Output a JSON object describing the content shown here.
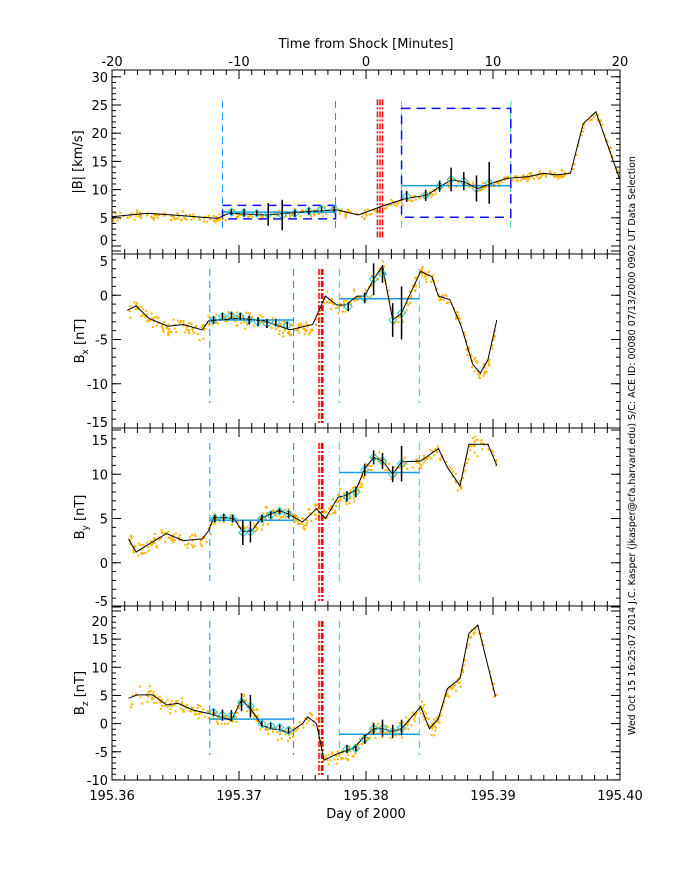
{
  "side_text": "Wed Oct 15 16:25:07 2014   J.C. Kasper (jkasper@cfa.harvard.edu)   S/C: ACE ID: 00080 07/13/2000   0902 UT Data Selection",
  "colors": {
    "data": "#ffb300",
    "fit": "#000000",
    "window1": "#1e90ff",
    "window2": "#20e0b0",
    "box": "#1010ff",
    "shock": "#ff0000",
    "mean": "#1e9be0"
  },
  "chart_data": [
    {
      "type": "line",
      "title": "",
      "xlabel": "Time from Shock [Minutes]",
      "ylabel": "|B| [km/s]",
      "xlim": [
        -20,
        20
      ],
      "ylim": [
        0,
        30
      ],
      "xticks": [
        "-20",
        "-10",
        "0",
        "10",
        "20"
      ],
      "yticks": [
        "0",
        "5",
        "10",
        "15",
        "20",
        "25",
        "30"
      ],
      "fit": [
        [
          -20,
          5.2
        ],
        [
          -17.2,
          5.8
        ],
        [
          -15.2,
          5.5
        ],
        [
          -11.7,
          4.9
        ],
        [
          -10.8,
          5.8
        ],
        [
          -7.9,
          5.5
        ],
        [
          -4.7,
          6.1
        ],
        [
          -2.3,
          6.4
        ],
        [
          -0.6,
          5.5
        ],
        [
          1.2,
          7.0
        ],
        [
          3.1,
          8.4
        ],
        [
          4.8,
          9.0
        ],
        [
          5.8,
          10.5
        ],
        [
          6.7,
          11.7
        ],
        [
          7.7,
          11.4
        ],
        [
          8.8,
          10.2
        ],
        [
          9.9,
          11.1
        ],
        [
          11.1,
          12.0
        ],
        [
          12.8,
          12.3
        ],
        [
          14.0,
          12.9
        ],
        [
          15.0,
          12.6
        ],
        [
          16.1,
          12.9
        ],
        [
          17.1,
          21.7
        ],
        [
          18.1,
          23.8
        ],
        [
          20,
          11.7
        ]
      ],
      "markers": [
        [
          -10.6,
          6.0,
          0.5
        ],
        [
          -9.6,
          5.9,
          0.7
        ],
        [
          -8.6,
          5.8,
          0.5
        ],
        [
          -7.7,
          5.6,
          2.0
        ],
        [
          -6.6,
          5.5,
          2.7
        ],
        [
          -5.6,
          5.8,
          0.6
        ],
        [
          -4.5,
          6.2,
          0.6
        ],
        [
          -3.5,
          6.5,
          0.5
        ],
        [
          -2.5,
          6.5,
          0.5
        ],
        [
          3.2,
          8.8,
          1.0
        ],
        [
          4.7,
          9.0,
          1.0
        ],
        [
          5.8,
          10.6,
          1.0
        ],
        [
          6.7,
          11.8,
          2.1
        ],
        [
          7.7,
          11.5,
          1.6
        ],
        [
          8.7,
          10.2,
          2.3
        ],
        [
          9.7,
          11.2,
          3.7
        ]
      ],
      "windows": [
        [
          -11.3,
          -2.4
        ],
        [
          2.8,
          11.4
        ]
      ],
      "means": [
        6.0,
        10.7
      ],
      "boxes": [
        [
          -11.3,
          -2.4,
          4.8,
          7.2
        ],
        [
          2.8,
          11.4,
          5.1,
          24.4
        ]
      ],
      "shock": [
        0.9,
        1.1,
        1.3
      ]
    },
    {
      "type": "line",
      "ylabel": "B",
      "ysub": "x",
      "yunit": " [nT]",
      "xlim": [
        195.36,
        195.4
      ],
      "ylim": [
        -15,
        5
      ],
      "yticks": [
        "-15",
        "-10",
        "-5",
        "0",
        "5"
      ],
      "fit": [
        [
          195.3612,
          -1.7
        ],
        [
          195.3619,
          -1.2
        ],
        [
          195.3629,
          -2.6
        ],
        [
          195.3644,
          -3.5
        ],
        [
          195.3656,
          -3.3
        ],
        [
          195.3671,
          -3.9
        ],
        [
          195.3676,
          -2.9
        ],
        [
          195.37,
          -2.6
        ],
        [
          195.372,
          -2.9
        ],
        [
          195.374,
          -3.9
        ],
        [
          195.3758,
          -3.3
        ],
        [
          195.3764,
          -1.4
        ],
        [
          195.3768,
          -0.1
        ],
        [
          195.3777,
          -1.1
        ],
        [
          195.3784,
          -1.1
        ],
        [
          195.3793,
          -0.1
        ],
        [
          195.3799,
          -0.1
        ],
        [
          195.3806,
          1.8
        ],
        [
          195.3813,
          3.3
        ],
        [
          195.3821,
          -2.8
        ],
        [
          195.3828,
          -2.0
        ],
        [
          195.3834,
          -0.1
        ],
        [
          195.3843,
          2.7
        ],
        [
          195.3852,
          2.1
        ],
        [
          195.3857,
          -0.1
        ],
        [
          195.3866,
          -0.5
        ],
        [
          195.3875,
          -3.5
        ],
        [
          195.3884,
          -7.8
        ],
        [
          195.389,
          -8.8
        ],
        [
          195.3896,
          -7.3
        ],
        [
          195.3903,
          -2.8
        ]
      ],
      "markers": [
        [
          195.368,
          -2.8,
          0.4
        ],
        [
          195.3687,
          -2.4,
          0.4
        ],
        [
          195.3694,
          -2.3,
          0.4
        ],
        [
          195.3701,
          -2.4,
          0.4
        ],
        [
          195.3708,
          -2.8,
          0.5
        ],
        [
          195.3715,
          -3.0,
          0.5
        ],
        [
          195.3722,
          -3.2,
          0.5
        ],
        [
          195.3729,
          -3.1,
          0.4
        ],
        [
          195.3738,
          -3.4,
          0.4
        ],
        [
          195.3786,
          -1.3,
          0.5
        ],
        [
          195.3799,
          -0.3,
          0.6
        ],
        [
          195.3806,
          1.8,
          1.8
        ],
        [
          195.3813,
          2.4,
          1.0
        ],
        [
          195.3821,
          -2.8,
          1.9
        ],
        [
          195.3828,
          -2.0,
          3.0
        ]
      ],
      "windows": [
        [
          195.3677,
          195.3743
        ],
        [
          195.3779,
          195.3842
        ]
      ],
      "means": [
        -2.8,
        -0.4
      ],
      "shock": [
        195.3763,
        195.3765,
        195.3766
      ]
    },
    {
      "type": "line",
      "ylabel": "B",
      "ysub": "y",
      "yunit": " [nT]",
      "xlim": [
        195.36,
        195.4
      ],
      "ylim": [
        -5,
        15
      ],
      "yticks": [
        "-5",
        "0",
        "5",
        "10",
        "15"
      ],
      "fit": [
        [
          195.3613,
          2.7
        ],
        [
          195.3619,
          1.2
        ],
        [
          195.3629,
          2.1
        ],
        [
          195.3643,
          3.3
        ],
        [
          195.3656,
          2.5
        ],
        [
          195.3671,
          2.7
        ],
        [
          195.3676,
          3.6
        ],
        [
          195.368,
          5.1
        ],
        [
          195.3689,
          5.1
        ],
        [
          195.3696,
          5.0
        ],
        [
          195.3703,
          3.5
        ],
        [
          195.371,
          3.6
        ],
        [
          195.3718,
          5.1
        ],
        [
          195.3725,
          5.5
        ],
        [
          195.3732,
          5.9
        ],
        [
          195.3739,
          5.5
        ],
        [
          195.375,
          4.6
        ],
        [
          195.3761,
          6.1
        ],
        [
          195.3768,
          5.0
        ],
        [
          195.3778,
          7.4
        ],
        [
          195.3784,
          7.6
        ],
        [
          195.3792,
          8.2
        ],
        [
          195.3799,
          10.6
        ],
        [
          195.3806,
          11.9
        ],
        [
          195.3813,
          11.5
        ],
        [
          195.3821,
          10.0
        ],
        [
          195.3828,
          11.4
        ],
        [
          195.3843,
          11.5
        ],
        [
          195.3857,
          12.9
        ],
        [
          195.3864,
          10.8
        ],
        [
          195.3874,
          8.7
        ],
        [
          195.3881,
          13.4
        ],
        [
          195.3896,
          13.4
        ],
        [
          195.3903,
          11.0
        ]
      ],
      "markers": [
        [
          195.3681,
          5.0,
          0.4
        ],
        [
          195.3688,
          5.1,
          0.4
        ],
        [
          195.3695,
          5.0,
          0.4
        ],
        [
          195.3703,
          3.4,
          1.4
        ],
        [
          195.3709,
          3.5,
          1.2
        ],
        [
          195.3718,
          5.0,
          0.4
        ],
        [
          195.3725,
          5.4,
          0.4
        ],
        [
          195.3732,
          5.8,
          0.3
        ],
        [
          195.3739,
          5.5,
          0.4
        ],
        [
          195.3785,
          7.5,
          0.6
        ],
        [
          195.3792,
          8.0,
          0.6
        ],
        [
          195.3799,
          10.5,
          0.7
        ],
        [
          195.3806,
          11.9,
          0.8
        ],
        [
          195.3813,
          11.5,
          0.9
        ],
        [
          195.3821,
          10.0,
          0.9
        ],
        [
          195.3828,
          11.2,
          2.0
        ]
      ],
      "windows": [
        [
          195.3677,
          195.3743
        ],
        [
          195.3779,
          195.3842
        ]
      ],
      "means": [
        4.8,
        10.2
      ],
      "shock": [
        195.3763,
        195.3765,
        195.3766
      ]
    },
    {
      "type": "line",
      "ylabel": "B",
      "ysub": "z",
      "yunit": " [nT]",
      "xlabel": "Day of 2000",
      "xlim": [
        195.36,
        195.4
      ],
      "ylim": [
        -10,
        20
      ],
      "xticks": [
        "195.36",
        "195.37",
        "195.38",
        "195.39",
        "195.40"
      ],
      "yticks": [
        "-10",
        "-5",
        "0",
        "5",
        "10",
        "15",
        "20"
      ],
      "fit": [
        [
          195.3613,
          4.5
        ],
        [
          195.362,
          5.1
        ],
        [
          195.3632,
          5.1
        ],
        [
          195.3643,
          3.3
        ],
        [
          195.3652,
          3.6
        ],
        [
          195.3664,
          2.4
        ],
        [
          195.3676,
          1.8
        ],
        [
          195.3685,
          1.2
        ],
        [
          195.3694,
          0.6
        ],
        [
          195.3702,
          4.2
        ],
        [
          195.3709,
          2.7
        ],
        [
          195.3718,
          -0.3
        ],
        [
          195.3725,
          -0.9
        ],
        [
          195.3732,
          -1.1
        ],
        [
          195.3739,
          -1.7
        ],
        [
          195.375,
          0.0
        ],
        [
          195.3754,
          1.2
        ],
        [
          195.3761,
          0.0
        ],
        [
          195.3767,
          -6.5
        ],
        [
          195.3778,
          -5.3
        ],
        [
          195.379,
          -4.4
        ],
        [
          195.3799,
          -2.3
        ],
        [
          195.3806,
          -0.9
        ],
        [
          195.3813,
          -0.9
        ],
        [
          195.3821,
          -1.4
        ],
        [
          195.3828,
          -0.9
        ],
        [
          195.3843,
          3.0
        ],
        [
          195.385,
          -0.9
        ],
        [
          195.3857,
          0.9
        ],
        [
          195.3864,
          6.2
        ],
        [
          195.3874,
          8.0
        ],
        [
          195.3881,
          16.0
        ],
        [
          195.3888,
          17.5
        ],
        [
          195.3902,
          4.8
        ]
      ],
      "markers": [
        [
          195.368,
          2.0,
          0.6
        ],
        [
          195.3687,
          1.5,
          1.0
        ],
        [
          195.3694,
          1.4,
          1.0
        ],
        [
          195.3702,
          3.8,
          1.6
        ],
        [
          195.3709,
          3.1,
          2.0
        ],
        [
          195.3718,
          0.0,
          0.5
        ],
        [
          195.3725,
          -0.4,
          0.5
        ],
        [
          195.3732,
          -0.7,
          0.5
        ],
        [
          195.3739,
          -1.2,
          0.5
        ],
        [
          195.3785,
          -4.5,
          0.7
        ],
        [
          195.3792,
          -4.4,
          0.5
        ],
        [
          195.3799,
          -2.8,
          0.8
        ],
        [
          195.3806,
          -0.9,
          1.0
        ],
        [
          195.3813,
          -0.8,
          1.5
        ],
        [
          195.3821,
          -1.4,
          1.2
        ],
        [
          195.3828,
          -0.7,
          1.4
        ]
      ],
      "windows": [
        [
          195.3677,
          195.3743
        ],
        [
          195.3779,
          195.3842
        ]
      ],
      "means": [
        0.8,
        -1.9
      ],
      "shock": [
        195.3763,
        195.3765,
        195.3766
      ]
    }
  ]
}
